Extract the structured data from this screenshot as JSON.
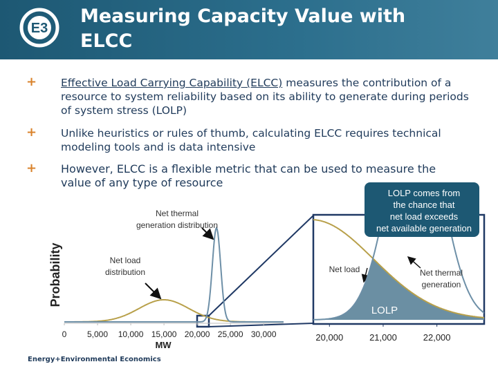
{
  "header": {
    "title": "Measuring Capacity Value with ELCC"
  },
  "bullets": [
    {
      "term": "Effective Load Carrying Capability (ELCC)",
      "text": " measures the contribution of a resource to system reliability based on its ability to generate during periods of system stress (LOLP)"
    },
    {
      "text": "Unlike heuristics or rules of thumb, calculating ELCC requires technical modeling tools and is data intensive"
    },
    {
      "text": "However, ELCC is a flexible metric that can be used to measure the value of any type of resource"
    }
  ],
  "chart_data": [
    {
      "type": "line",
      "x_label": "MW",
      "y_label": "Probability",
      "xlim": [
        0,
        33000
      ],
      "xticks": [
        0,
        {
          "value": 5000,
          "label": "5,000"
        },
        {
          "value": 10000,
          "label": "10,000"
        },
        {
          "value": 15000,
          "label": "15,000"
        },
        {
          "value": 20000,
          "label": "20,000"
        },
        {
          "value": 25000,
          "label": "25,000"
        },
        {
          "value": 30000,
          "label": "30,000"
        }
      ],
      "annotations": [
        "Net thermal generation distribution",
        "Net load distribution"
      ]
    },
    {
      "type": "line",
      "xlim": [
        19700,
        22880
      ],
      "xticks": [
        {
          "value": 20000,
          "label": "20,000"
        },
        {
          "value": 21000,
          "label": "21,000"
        },
        {
          "value": 22000,
          "label": "22,000"
        }
      ],
      "annotations": [
        "Net load",
        "Net thermal generation",
        "LOLP"
      ],
      "callout": "LOLP comes from the chance that net load exceeds net available generation"
    }
  ],
  "footer": "Energy+Environmental Economics"
}
